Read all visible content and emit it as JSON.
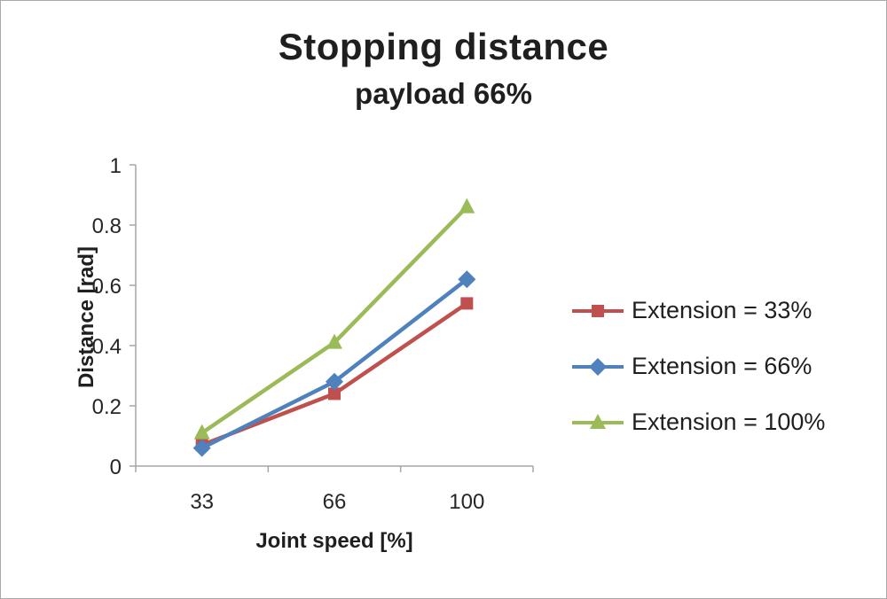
{
  "chart_data": {
    "type": "line",
    "title": "Stopping distance",
    "subtitle": "payload 66%",
    "xlabel": "Joint speed [%]",
    "ylabel": "Distance [rad]",
    "categories": [
      "33",
      "66",
      "100"
    ],
    "ylim": [
      0,
      1
    ],
    "yticks": [
      0,
      0.2,
      0.4,
      0.6,
      0.8,
      1
    ],
    "grid": false,
    "legend_position": "right",
    "axis_color": "#a6a6a6",
    "text_color": "#262626",
    "series": [
      {
        "name": "Extension = 33%",
        "marker": "square",
        "color": "#c0504d",
        "values": [
          0.07,
          0.24,
          0.54
        ]
      },
      {
        "name": "Extension = 66%",
        "marker": "diamond",
        "color": "#4f81bd",
        "values": [
          0.06,
          0.28,
          0.62
        ]
      },
      {
        "name": "Extension = 100%",
        "marker": "triangle",
        "color": "#9bbb59",
        "values": [
          0.11,
          0.41,
          0.86
        ]
      }
    ]
  }
}
